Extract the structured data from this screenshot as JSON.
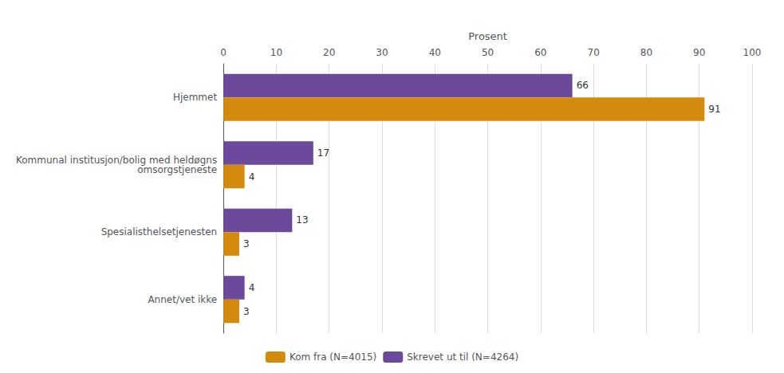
{
  "chart_data": {
    "type": "bar",
    "orientation": "horizontal",
    "categories": [
      "Annet/vet ikke",
      "Spesialisthelsetjenesten",
      "Kommunal institusjon/bolig med heldøgns\nomsorgstjeneste",
      "Hjemmet"
    ],
    "series": [
      {
        "name": "Kom fra (N=4015)",
        "color": "#D48A0C",
        "values": [
          3,
          3,
          4,
          91
        ]
      },
      {
        "name": "Skrevet ut til (N=4264)",
        "color": "#6B4A9B",
        "values": [
          4,
          13,
          17,
          66
        ]
      }
    ],
    "xlabel": "Prosent",
    "xlim": [
      0,
      100
    ],
    "xticks": [
      0,
      10,
      20,
      30,
      40,
      50,
      60,
      70,
      80,
      90,
      100
    ],
    "grid": true,
    "legend": "bottom",
    "data_labels": true
  }
}
